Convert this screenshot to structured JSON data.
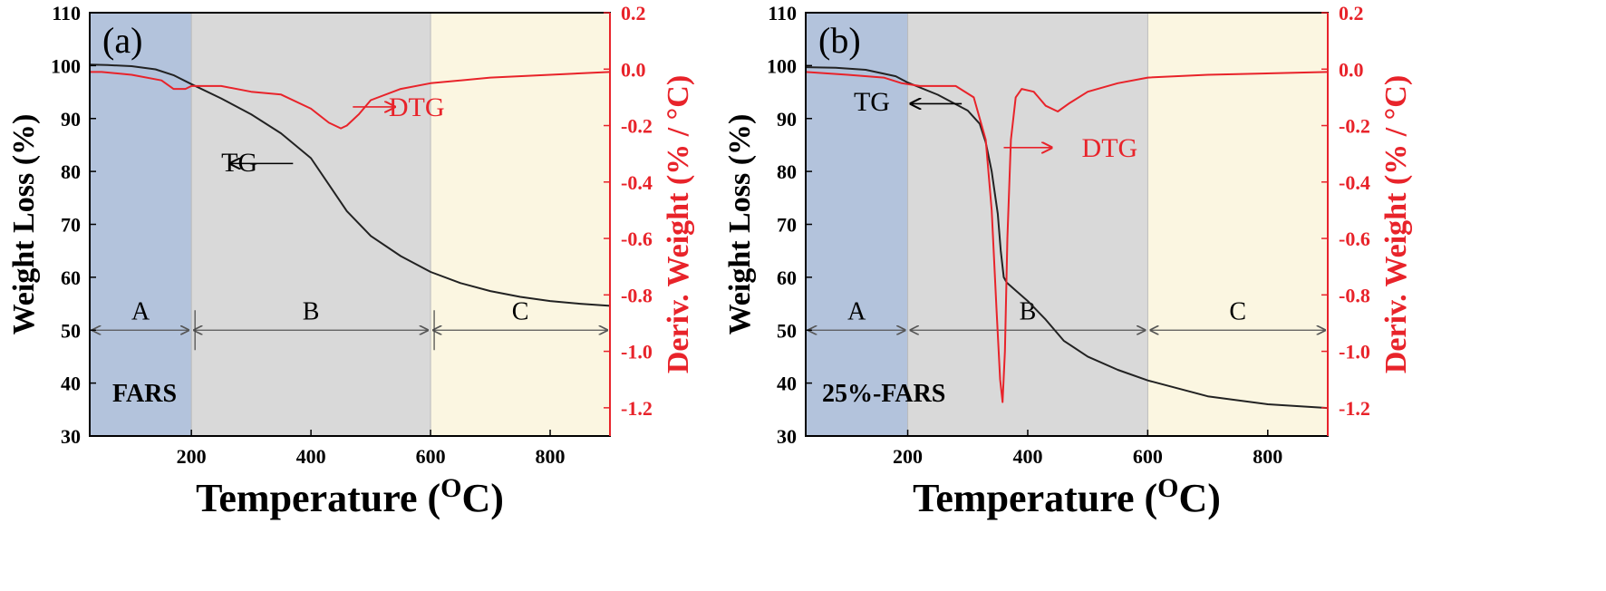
{
  "colors": {
    "tg": "#222222",
    "dtg": "#e8232a",
    "regionA": "#b3c3dc",
    "regionB": "#d9d9d9",
    "regionC": "#fbf6e1",
    "arrow": "#555555"
  },
  "chart_data": [
    {
      "type": "line",
      "panel_label": "(a)",
      "sample_label": "FARS",
      "xlabel": "Temperature (",
      "xlabel_sup": "O",
      "xlabel_tail": "C)",
      "ylabel": "Weight Loss (%)",
      "y2label": "Deriv. Weight (% / °C)",
      "xlim": [
        30,
        900
      ],
      "ylim": [
        30,
        110
      ],
      "y2lim": [
        -1.3,
        0.2
      ],
      "xticks": [
        200,
        400,
        600,
        800
      ],
      "yticks": [
        30,
        40,
        50,
        60,
        70,
        80,
        90,
        100,
        110
      ],
      "y2ticks": [
        -1.2,
        -1.0,
        -0.8,
        -0.6,
        -0.4,
        -0.2,
        0.0,
        0.2
      ],
      "y2tick_labels": [
        "-1.2",
        "-1.0",
        "-0.8",
        "-0.6",
        "-0.4",
        "-0.2",
        "0.0",
        "0.2"
      ],
      "regions": [
        {
          "label": "A",
          "from": 30,
          "to": 200
        },
        {
          "label": "B",
          "from": 200,
          "to": 600
        },
        {
          "label": "C",
          "from": 600,
          "to": 900
        }
      ],
      "region_label_y": 50,
      "series": [
        {
          "name": "TG",
          "axis": "left",
          "x": [
            30,
            60,
            100,
            140,
            170,
            200,
            250,
            300,
            350,
            400,
            430,
            460,
            500,
            550,
            600,
            650,
            700,
            750,
            800,
            850,
            900
          ],
          "y": [
            100.2,
            100.1,
            99.9,
            99.3,
            98.2,
            96.5,
            93.8,
            90.8,
            87.2,
            82.5,
            77.5,
            72.5,
            67.8,
            64.0,
            61.0,
            58.9,
            57.4,
            56.3,
            55.5,
            55.0,
            54.6
          ]
        },
        {
          "name": "DTG",
          "axis": "right",
          "x": [
            30,
            50,
            100,
            150,
            170,
            190,
            200,
            250,
            300,
            350,
            400,
            430,
            450,
            460,
            480,
            500,
            550,
            600,
            700,
            800,
            900
          ],
          "y": [
            -0.01,
            -0.01,
            -0.02,
            -0.04,
            -0.07,
            -0.07,
            -0.06,
            -0.06,
            -0.08,
            -0.09,
            -0.14,
            -0.19,
            -0.21,
            -0.2,
            -0.16,
            -0.11,
            -0.07,
            -0.05,
            -0.03,
            -0.02,
            -0.01
          ]
        }
      ],
      "annotations": {
        "tg": {
          "text": "TG",
          "label_x": 250,
          "label_y": 80,
          "arrow_from_x": 370,
          "arrow_to_x": 265,
          "arrow_y": 81.5
        },
        "dtg": {
          "text": "DTG",
          "label_x": 530,
          "label_y": 90.5,
          "arrow_from_x": 470,
          "arrow_to_x": 540,
          "arrow_y": 92.2
        }
      }
    },
    {
      "type": "line",
      "panel_label": "(b)",
      "sample_label": "25%-FARS",
      "xlabel": "Temperature (",
      "xlabel_sup": "O",
      "xlabel_tail": "C)",
      "ylabel": "Weight Loss (%)",
      "y2label": "Deriv. Weight (% / °C)",
      "xlim": [
        30,
        900
      ],
      "ylim": [
        30,
        110
      ],
      "y2lim": [
        -1.3,
        0.2
      ],
      "xticks": [
        200,
        400,
        600,
        800
      ],
      "yticks": [
        30,
        40,
        50,
        60,
        70,
        80,
        90,
        100,
        110
      ],
      "y2ticks": [
        -1.2,
        -1.0,
        -0.8,
        -0.6,
        -0.4,
        -0.2,
        0.0,
        0.2
      ],
      "y2tick_labels": [
        "-1.2",
        "-1.0",
        "-0.8",
        "-0.6",
        "-0.4",
        "-0.2",
        "0.0",
        "0.2"
      ],
      "regions": [
        {
          "label": "A",
          "from": 30,
          "to": 200
        },
        {
          "label": "B",
          "from": 200,
          "to": 600
        },
        {
          "label": "C",
          "from": 600,
          "to": 900
        }
      ],
      "region_label_y": 50,
      "series": [
        {
          "name": "TG",
          "axis": "left",
          "x": [
            30,
            80,
            130,
            180,
            200,
            250,
            300,
            320,
            330,
            340,
            350,
            355,
            360,
            365,
            380,
            400,
            430,
            460,
            500,
            550,
            600,
            700,
            800,
            900
          ],
          "y": [
            99.7,
            99.6,
            99.2,
            98.0,
            96.8,
            94.5,
            91.5,
            89.0,
            85.5,
            80.0,
            72.0,
            65.0,
            60.0,
            59.0,
            57.5,
            55.5,
            52.0,
            48.0,
            45.0,
            42.5,
            40.5,
            37.5,
            36.0,
            35.3
          ]
        },
        {
          "name": "DTG",
          "axis": "right",
          "x": [
            30,
            100,
            160,
            190,
            220,
            280,
            310,
            330,
            340,
            348,
            354,
            358,
            362,
            366,
            372,
            380,
            390,
            410,
            430,
            450,
            470,
            500,
            550,
            600,
            700,
            900
          ],
          "y": [
            -0.01,
            -0.02,
            -0.03,
            -0.05,
            -0.06,
            -0.06,
            -0.1,
            -0.25,
            -0.5,
            -0.85,
            -1.1,
            -1.18,
            -1.0,
            -0.6,
            -0.25,
            -0.1,
            -0.07,
            -0.08,
            -0.13,
            -0.15,
            -0.12,
            -0.08,
            -0.05,
            -0.03,
            -0.02,
            -0.01
          ]
        }
      ],
      "annotations": {
        "tg": {
          "text": "TG",
          "label_x": 110,
          "label_y": 91.5,
          "arrow_from_x": 290,
          "arrow_to_x": 205,
          "arrow_y": 92.8
        },
        "dtg": {
          "text": "DTG",
          "label_x": 490,
          "label_y": 82.8,
          "arrow_from_x": 360,
          "arrow_to_x": 440,
          "arrow_y": 84.5
        }
      }
    }
  ]
}
